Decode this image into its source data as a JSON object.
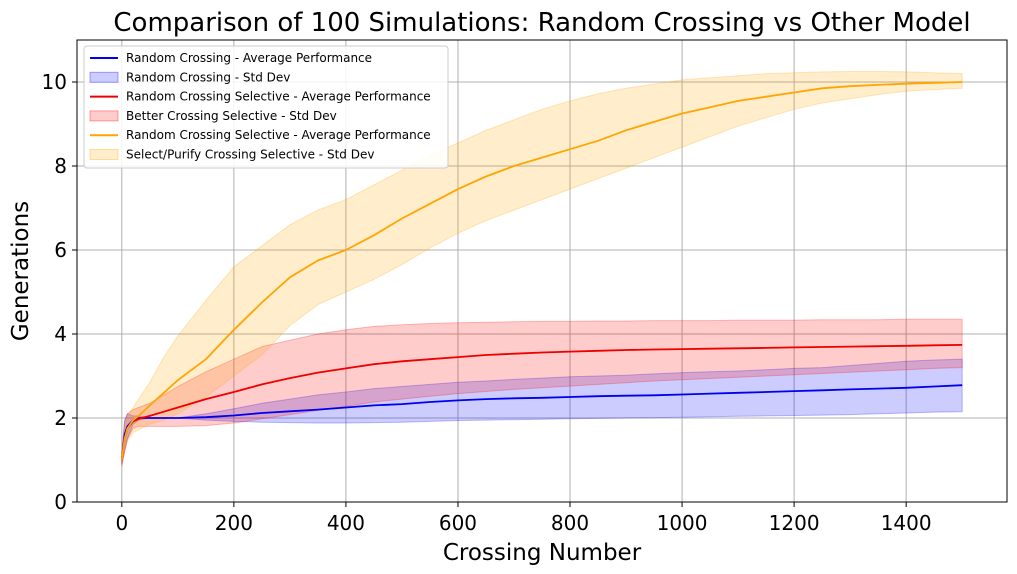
{
  "chart_data": {
    "type": "line",
    "title": "Comparison of 100 Simulations: Random Crossing vs Other Model",
    "xlabel": "Crossing Number",
    "ylabel": "Generations",
    "xlim": [
      -80,
      1580
    ],
    "ylim": [
      0,
      11
    ],
    "xticks": [
      0,
      200,
      400,
      600,
      800,
      1000,
      1200,
      1400
    ],
    "yticks": [
      0,
      2,
      4,
      6,
      8,
      10
    ],
    "grid": true,
    "legend_position": "top-left",
    "colors": {
      "blue_line": "#0000ee",
      "blue_band": "#0000ff",
      "red_line": "#ee0000",
      "red_band": "#ff0000",
      "orange_line": "#ffa500",
      "orange_band": "#ffa500"
    },
    "x": [
      0,
      5,
      10,
      20,
      30,
      50,
      75,
      100,
      150,
      200,
      250,
      300,
      350,
      400,
      450,
      500,
      550,
      600,
      650,
      700,
      750,
      800,
      850,
      900,
      950,
      1000,
      1050,
      1100,
      1150,
      1200,
      1250,
      1300,
      1350,
      1400,
      1450,
      1500
    ],
    "series": [
      {
        "name": "Random Crossing - Average Performance",
        "values": [
          1.0,
          1.6,
          1.8,
          1.95,
          2.0,
          2.0,
          2.0,
          2.0,
          2.02,
          2.06,
          2.12,
          2.16,
          2.2,
          2.25,
          2.3,
          2.33,
          2.38,
          2.42,
          2.45,
          2.47,
          2.48,
          2.5,
          2.52,
          2.53,
          2.54,
          2.56,
          2.58,
          2.6,
          2.62,
          2.64,
          2.66,
          2.68,
          2.7,
          2.72,
          2.75,
          2.78
        ],
        "band_label": "Random Crossing - Std Dev",
        "lower": [
          0.9,
          1.2,
          1.5,
          1.85,
          1.95,
          2.0,
          2.0,
          2.0,
          1.95,
          1.92,
          1.9,
          1.89,
          1.88,
          1.88,
          1.89,
          1.9,
          1.92,
          1.94,
          1.95,
          1.96,
          1.97,
          1.98,
          1.99,
          2.0,
          2.01,
          2.02,
          2.03,
          2.04,
          2.05,
          2.06,
          2.07,
          2.08,
          2.1,
          2.12,
          2.14,
          2.15
        ],
        "upper": [
          1.1,
          1.95,
          2.1,
          2.05,
          2.05,
          2.0,
          2.0,
          2.0,
          2.1,
          2.22,
          2.35,
          2.45,
          2.55,
          2.62,
          2.7,
          2.75,
          2.8,
          2.85,
          2.88,
          2.92,
          2.95,
          2.98,
          3.0,
          3.02,
          3.05,
          3.08,
          3.1,
          3.12,
          3.15,
          3.18,
          3.2,
          3.25,
          3.3,
          3.35,
          3.38,
          3.4
        ]
      },
      {
        "name": "Random Crossing Selective - Average Performance",
        "values": [
          1.0,
          1.5,
          1.75,
          1.92,
          1.98,
          2.05,
          2.15,
          2.25,
          2.45,
          2.62,
          2.8,
          2.95,
          3.08,
          3.18,
          3.28,
          3.35,
          3.4,
          3.45,
          3.5,
          3.53,
          3.56,
          3.58,
          3.6,
          3.62,
          3.63,
          3.64,
          3.65,
          3.66,
          3.67,
          3.68,
          3.69,
          3.7,
          3.71,
          3.72,
          3.73,
          3.74
        ],
        "band_label": "Better Crossing Selective - Std Dev",
        "lower": [
          0.85,
          1.2,
          1.5,
          1.75,
          1.8,
          1.8,
          1.8,
          1.8,
          1.82,
          1.88,
          1.98,
          2.08,
          2.18,
          2.28,
          2.38,
          2.45,
          2.52,
          2.58,
          2.63,
          2.68,
          2.72,
          2.76,
          2.8,
          2.84,
          2.88,
          2.91,
          2.94,
          2.97,
          3.0,
          3.03,
          3.06,
          3.09,
          3.12,
          3.15,
          3.18,
          3.2
        ],
        "upper": [
          1.15,
          1.9,
          2.1,
          2.2,
          2.25,
          2.35,
          2.55,
          2.75,
          3.1,
          3.4,
          3.7,
          3.85,
          4.0,
          4.1,
          4.18,
          4.22,
          4.25,
          4.27,
          4.28,
          4.29,
          4.3,
          4.3,
          4.31,
          4.31,
          4.32,
          4.32,
          4.32,
          4.33,
          4.33,
          4.33,
          4.34,
          4.34,
          4.34,
          4.35,
          4.35,
          4.35
        ]
      },
      {
        "name": "Random Crossing Selective - Average Performance",
        "values": [
          1.0,
          1.5,
          1.75,
          1.95,
          2.05,
          2.3,
          2.6,
          2.9,
          3.4,
          4.1,
          4.75,
          5.35,
          5.75,
          6.0,
          6.35,
          6.75,
          7.1,
          7.45,
          7.75,
          8.0,
          8.2,
          8.4,
          8.6,
          8.85,
          9.05,
          9.25,
          9.4,
          9.55,
          9.65,
          9.75,
          9.85,
          9.9,
          9.93,
          9.96,
          9.98,
          10.0
        ],
        "band_label": "Select/Purify Crossing Selective - Std Dev",
        "lower": [
          0.85,
          1.2,
          1.45,
          1.65,
          1.72,
          1.85,
          1.95,
          2.1,
          2.5,
          3.0,
          3.5,
          4.2,
          4.7,
          5.0,
          5.3,
          5.65,
          6.05,
          6.4,
          6.7,
          6.95,
          7.2,
          7.45,
          7.7,
          7.95,
          8.2,
          8.45,
          8.7,
          8.95,
          9.15,
          9.35,
          9.5,
          9.6,
          9.7,
          9.78,
          9.82,
          9.85
        ],
        "upper": [
          1.15,
          1.8,
          2.05,
          2.25,
          2.45,
          2.85,
          3.45,
          3.95,
          4.8,
          5.6,
          6.1,
          6.6,
          6.95,
          7.2,
          7.55,
          7.9,
          8.25,
          8.55,
          8.85,
          9.1,
          9.35,
          9.55,
          9.72,
          9.85,
          9.95,
          10.05,
          10.1,
          10.15,
          10.2,
          10.22,
          10.24,
          10.25,
          10.25,
          10.24,
          10.22,
          10.2
        ]
      }
    ],
    "legend": [
      {
        "kind": "line",
        "color_key": "blue_line",
        "label": "Random Crossing - Average Performance"
      },
      {
        "kind": "band",
        "color_key": "blue_band",
        "label": "Random Crossing - Std Dev"
      },
      {
        "kind": "line",
        "color_key": "red_line",
        "label": "Random Crossing Selective - Average Performance"
      },
      {
        "kind": "band",
        "color_key": "red_band",
        "label": "Better Crossing Selective - Std Dev"
      },
      {
        "kind": "line",
        "color_key": "orange_line",
        "label": "Random Crossing Selective - Average Performance"
      },
      {
        "kind": "band",
        "color_key": "orange_band",
        "label": "Select/Purify Crossing Selective - Std Dev"
      }
    ]
  }
}
